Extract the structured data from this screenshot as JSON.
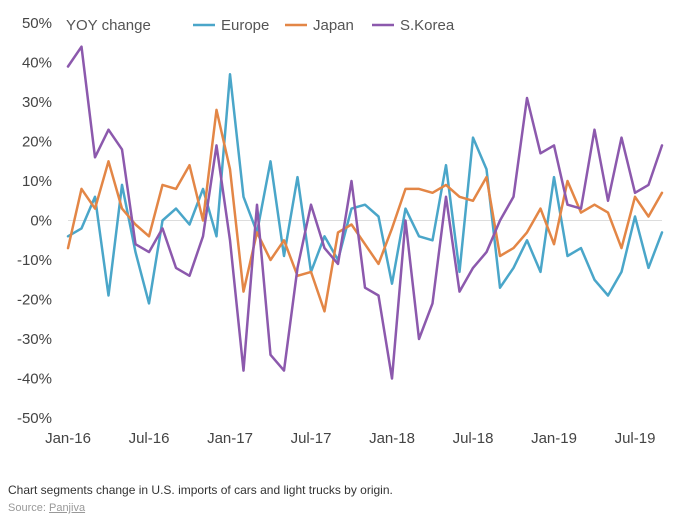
{
  "chart_data": {
    "type": "line",
    "ylabel": "YOY change",
    "ylim": [
      -50,
      50
    ],
    "yticks": [
      50,
      40,
      30,
      20,
      10,
      0,
      -10,
      -20,
      -30,
      -40,
      -50
    ],
    "ytick_labels": [
      "50%",
      "40%",
      "30%",
      "20%",
      "10%",
      "0%",
      "-10%",
      "-20%",
      "-30%",
      "-40%",
      "-50%"
    ],
    "xtick_labels": [
      "Jan-16",
      "Jul-16",
      "Jan-17",
      "Jul-17",
      "Jan-18",
      "Jul-18",
      "Jan-19",
      "Jul-19"
    ],
    "xtick_index": [
      0,
      6,
      12,
      18,
      24,
      30,
      36,
      42
    ],
    "n_points": 45,
    "grid": false,
    "legend": "top",
    "series": [
      {
        "name": "Europe",
        "color": "#4aa6c9",
        "values": [
          -4,
          -2,
          6,
          -19,
          9,
          -8,
          -21,
          0,
          3,
          -1,
          8,
          -4,
          37,
          6,
          -3,
          15,
          -9,
          11,
          -13,
          -4,
          -10,
          3,
          4,
          1,
          -16,
          3,
          -4,
          -5,
          14,
          -13,
          21,
          13,
          -17,
          -12,
          -5,
          -13,
          11,
          -9,
          -7,
          -15,
          -19,
          -13,
          1,
          -12,
          -3
        ]
      },
      {
        "name": "Japan",
        "color": "#e38646",
        "values": [
          -7,
          8,
          3,
          15,
          3,
          -1,
          -4,
          9,
          8,
          14,
          0,
          28,
          13,
          -18,
          -3,
          -10,
          -5,
          -14,
          -13,
          -23,
          -3,
          -1,
          -6,
          -11,
          -2,
          8,
          8,
          7,
          9,
          6,
          5,
          11,
          -9,
          -7,
          -3,
          3,
          -6,
          10,
          2,
          4,
          2,
          -7,
          6,
          1,
          7
        ]
      },
      {
        "name": "S.Korea",
        "color": "#8c59ad",
        "values": [
          39,
          44,
          16,
          23,
          18,
          -6,
          -8,
          -2,
          -12,
          -14,
          -4,
          19,
          -5,
          -38,
          4,
          -34,
          -38,
          -12,
          4,
          -7,
          -11,
          10,
          -17,
          -19,
          -40,
          0,
          -30,
          -21,
          6,
          -18,
          -12,
          -8,
          0,
          6,
          31,
          17,
          19,
          4,
          3,
          23,
          5,
          21,
          7,
          9,
          19
        ]
      }
    ]
  },
  "caption": "Chart segments change in U.S. imports of cars and light trucks by origin.",
  "source_label": "Source:",
  "source_link": "Panjiva"
}
